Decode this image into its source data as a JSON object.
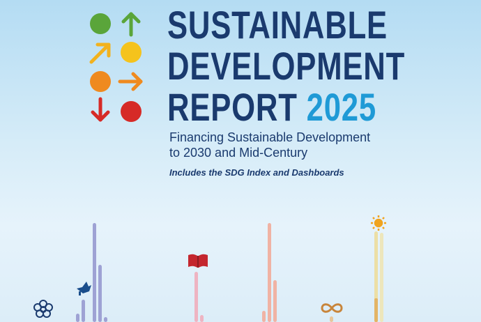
{
  "report": {
    "title_line1": "SUSTAINABLE",
    "title_line2": "DEVELOPMENT",
    "title_line3": "REPORT",
    "year": "2025",
    "subtitle_line1": "Financing Sustainable Development",
    "subtitle_line2": "to 2030 and Mid-Century",
    "tagline": "Includes the SDG Index and Dashboards"
  },
  "logo": {
    "cells": [
      {
        "shape": "circle",
        "color": "#5aa53a"
      },
      {
        "shape": "arrow-up",
        "color": "#5aa53a"
      },
      {
        "shape": "arrow-up-right",
        "color": "#f2b21e"
      },
      {
        "shape": "circle",
        "color": "#f5c31c"
      },
      {
        "shape": "circle",
        "color": "#ef8a1f"
      },
      {
        "shape": "arrow-right",
        "color": "#ef8a1f"
      },
      {
        "shape": "arrow-down",
        "color": "#d62a27"
      },
      {
        "shape": "circle",
        "color": "#d62a27"
      }
    ]
  },
  "decoration_icons": [
    "flower-icon",
    "dove-icon",
    "book-icon",
    "infinity-icon",
    "sun-icon"
  ]
}
